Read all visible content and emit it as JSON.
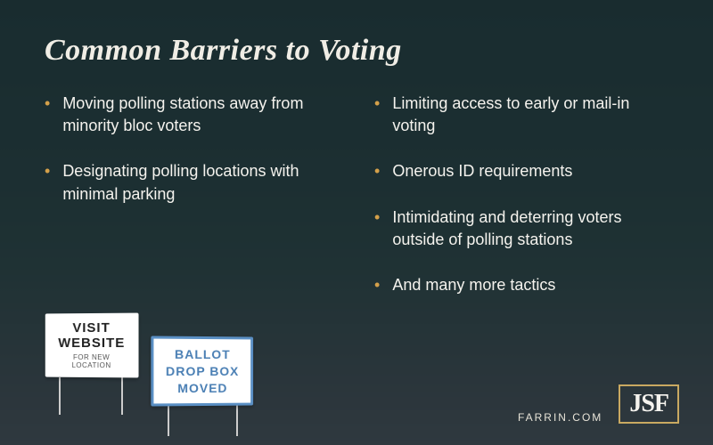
{
  "title": "Common Barriers to Voting",
  "columns": {
    "left": [
      "Moving polling stations away from minority bloc voters",
      "Designating polling locations with minimal parking"
    ],
    "right": [
      "Limiting access to early or mail-in voting",
      "Onerous ID requirements",
      "Intimidating and deterring voters outside of polling stations",
      "And many more tactics"
    ]
  },
  "signs": {
    "sign1": {
      "l1": "VISIT",
      "l2": "WEBSITE",
      "l3": "FOR NEW",
      "l4": "LOCATION"
    },
    "sign2": {
      "l1": "BALLOT",
      "l2": "DROP BOX",
      "l3": "MOVED"
    }
  },
  "footer": {
    "url": "FARRIN.COM",
    "logo": "JSF"
  },
  "colors": {
    "bullet": "#d4a04a",
    "overlay": "rgba(15,30,45,0.82)",
    "logo_border": "#c9a961",
    "sign2_border": "#5a8fc4"
  }
}
